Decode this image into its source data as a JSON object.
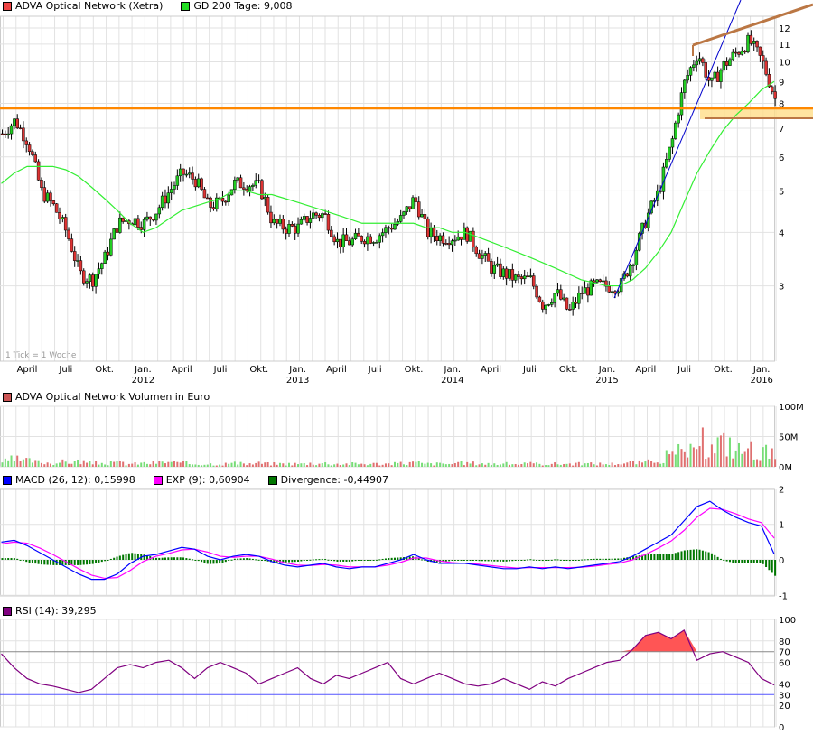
{
  "legends": {
    "price": [
      {
        "label": "ADVA Optical Network (Xetra)",
        "color": "#ee4444"
      },
      {
        "label": "GD 200 Tage: 9,008",
        "color": "#22dd22"
      }
    ],
    "volume": [
      {
        "label": "ADVA Optical Network Volumen in Euro",
        "color": "#cc5555"
      }
    ],
    "macd": [
      {
        "label": "MACD (26, 12): 0,15998",
        "color": "#0000ff"
      },
      {
        "label": "EXP (9): 0,60904",
        "color": "#ff00ff"
      },
      {
        "label": "Divergence: -0,44907",
        "color": "#007700"
      }
    ],
    "rsi": [
      {
        "label": "RSI (14): 39,295",
        "color": "#800080"
      }
    ]
  },
  "note": "1 Tick = 1 Woche",
  "chart_data": [
    {
      "type": "candlestick",
      "scale": "log",
      "ylim": [
        2,
        13
      ],
      "yticks": [
        "12",
        "11",
        "10",
        "9",
        "8",
        "7",
        "6",
        "5",
        "4",
        "3"
      ],
      "xticks": [
        {
          "m": "April",
          "y": ""
        },
        {
          "m": "Juli",
          "y": ""
        },
        {
          "m": "Okt.",
          "y": ""
        },
        {
          "m": "Jan.",
          "y": "2012"
        },
        {
          "m": "April",
          "y": ""
        },
        {
          "m": "Juli",
          "y": ""
        },
        {
          "m": "Okt.",
          "y": ""
        },
        {
          "m": "Jan.",
          "y": "2013"
        },
        {
          "m": "April",
          "y": ""
        },
        {
          "m": "Juli",
          "y": ""
        },
        {
          "m": "Okt.",
          "y": ""
        },
        {
          "m": "Jan.",
          "y": "2014"
        },
        {
          "m": "April",
          "y": ""
        },
        {
          "m": "Juli",
          "y": ""
        },
        {
          "m": "Okt.",
          "y": ""
        },
        {
          "m": "Jan.",
          "y": "2015"
        },
        {
          "m": "April",
          "y": ""
        },
        {
          "m": "Juli",
          "y": ""
        },
        {
          "m": "Okt.",
          "y": ""
        },
        {
          "m": "Jan.",
          "y": "2016"
        }
      ],
      "months_from": "2011-02",
      "monthly_close": [
        6.8,
        7.3,
        6.5,
        5.0,
        4.6,
        4.0,
        3.2,
        3.1,
        3.5,
        4.2,
        4.3,
        4.2,
        4.5,
        5.0,
        5.5,
        5.3,
        4.6,
        4.7,
        5.2,
        5.2,
        5.1,
        4.2,
        4.1,
        4.1,
        4.4,
        4.4,
        3.8,
        3.8,
        3.9,
        3.9,
        4.1,
        4.3,
        4.8,
        4.0,
        3.9,
        3.9,
        4.0,
        3.6,
        3.3,
        3.2,
        3.1,
        3.1,
        2.7,
        2.9,
        2.6,
        2.9,
        3.0,
        3.0,
        3.0,
        3.5,
        4.3,
        5.0,
        6.5,
        9.0,
        10.5,
        8.8,
        9.8,
        10.5,
        11.2,
        10.0,
        8.2
      ],
      "gd200": [
        5.2,
        5.5,
        5.7,
        5.7,
        5.7,
        5.6,
        5.4,
        5.1,
        4.8,
        4.5,
        4.2,
        4.0,
        4.1,
        4.3,
        4.5,
        4.6,
        4.7,
        4.8,
        5.0,
        5.0,
        4.9,
        4.9,
        4.8,
        4.7,
        4.6,
        4.5,
        4.4,
        4.3,
        4.2,
        4.2,
        4.2,
        4.2,
        4.2,
        4.1,
        4.1,
        4.0,
        4.0,
        3.9,
        3.8,
        3.7,
        3.6,
        3.5,
        3.4,
        3.3,
        3.2,
        3.1,
        3.05,
        3.0,
        3.0,
        3.1,
        3.3,
        3.6,
        4.0,
        4.7,
        5.5,
        6.2,
        6.9,
        7.5,
        8.0,
        8.6,
        9.0
      ],
      "support_level": 7.8,
      "support_zone": [
        7.35,
        7.8
      ],
      "colors": {
        "up": "#22cc22",
        "down": "#dd3333",
        "gd200": "#33ee33",
        "support": "#ff8800",
        "zone": "#ffdd88",
        "channel": "#bb7744",
        "trend": "#0000cc"
      }
    },
    {
      "type": "bar",
      "ylim": [
        0,
        100
      ],
      "yticks": [
        "100M",
        "50M",
        "0M"
      ],
      "monthly_volume_m": [
        9,
        12,
        10,
        8,
        7,
        8,
        9,
        6,
        6,
        7,
        5,
        6,
        7,
        8,
        6,
        5,
        5,
        5,
        6,
        5,
        6,
        5,
        5,
        5,
        6,
        6,
        5,
        5,
        5,
        5,
        5,
        6,
        7,
        5,
        5,
        5,
        6,
        6,
        5,
        5,
        5,
        5,
        5,
        5,
        5,
        5,
        5,
        5,
        6,
        7,
        8,
        12,
        18,
        25,
        22,
        30,
        40,
        28,
        30,
        25,
        20
      ]
    },
    {
      "type": "line",
      "ylim": [
        -1,
        2
      ],
      "yticks": [
        "2",
        "1",
        "0",
        "-1"
      ],
      "macd": [
        0.5,
        0.55,
        0.4,
        0.2,
        0,
        -0.2,
        -0.4,
        -0.55,
        -0.55,
        -0.4,
        -0.1,
        0.1,
        0.15,
        0.25,
        0.35,
        0.3,
        0.1,
        0.0,
        0.1,
        0.15,
        0.1,
        -0.05,
        -0.15,
        -0.2,
        -0.15,
        -0.1,
        -0.2,
        -0.25,
        -0.2,
        -0.2,
        -0.1,
        0.0,
        0.15,
        0.0,
        -0.1,
        -0.1,
        -0.1,
        -0.15,
        -0.2,
        -0.25,
        -0.25,
        -0.2,
        -0.25,
        -0.2,
        -0.25,
        -0.2,
        -0.15,
        -0.1,
        -0.05,
        0.1,
        0.3,
        0.5,
        0.7,
        1.1,
        1.5,
        1.65,
        1.4,
        1.2,
        1.05,
        0.95,
        0.16
      ],
      "exp": [
        0.45,
        0.5,
        0.47,
        0.33,
        0.15,
        -0.05,
        -0.25,
        -0.43,
        -0.52,
        -0.5,
        -0.3,
        -0.05,
        0.1,
        0.18,
        0.28,
        0.3,
        0.22,
        0.1,
        0.07,
        0.1,
        0.1,
        0.02,
        -0.08,
        -0.15,
        -0.16,
        -0.13,
        -0.15,
        -0.2,
        -0.2,
        -0.2,
        -0.15,
        -0.07,
        0.05,
        0.05,
        -0.03,
        -0.08,
        -0.1,
        -0.12,
        -0.16,
        -0.2,
        -0.23,
        -0.22,
        -0.22,
        -0.22,
        -0.22,
        -0.21,
        -0.18,
        -0.13,
        -0.09,
        0.0,
        0.15,
        0.33,
        0.53,
        0.83,
        1.2,
        1.45,
        1.42,
        1.3,
        1.15,
        1.05,
        0.61
      ]
    },
    {
      "type": "line",
      "ylim": [
        0,
        100
      ],
      "yticks": [
        "100",
        "80",
        "70",
        "60",
        "40",
        "30",
        "20",
        "0"
      ],
      "rsi": [
        68,
        55,
        45,
        40,
        38,
        35,
        32,
        35,
        45,
        55,
        58,
        55,
        60,
        62,
        55,
        45,
        55,
        60,
        55,
        50,
        40,
        45,
        50,
        55,
        45,
        40,
        48,
        45,
        50,
        55,
        60,
        45,
        40,
        45,
        50,
        45,
        40,
        38,
        40,
        45,
        40,
        35,
        42,
        38,
        45,
        50,
        55,
        60,
        62,
        72,
        85,
        88,
        82,
        90,
        62,
        68,
        70,
        65,
        60,
        45,
        39
      ],
      "levels": [
        70,
        30
      ]
    }
  ]
}
